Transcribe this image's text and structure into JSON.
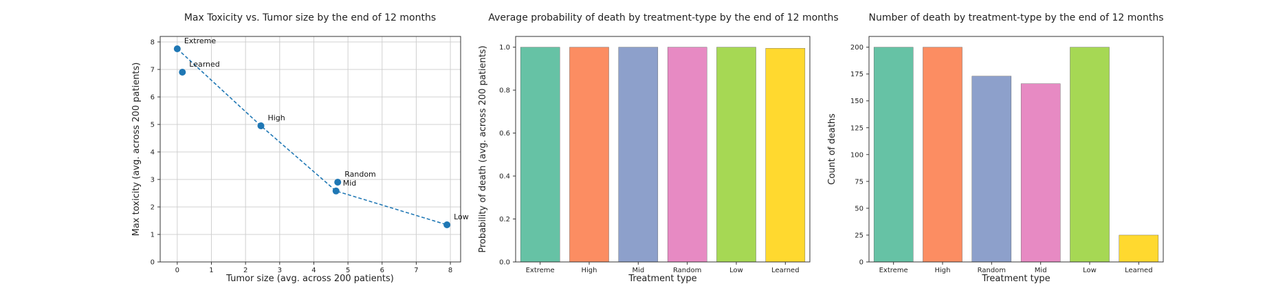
{
  "chart_data": [
    {
      "type": "scatter",
      "title": "Max Toxicity vs. Tumor size by the end of 12 months",
      "xlabel": "Tumor size (avg. across 200 patients)",
      "ylabel": "Max toxicity (avg. across 200 patients)",
      "xlim": [
        -0.5,
        8.3
      ],
      "ylim": [
        0,
        8.2
      ],
      "xticks": [
        0,
        1,
        2,
        3,
        4,
        5,
        6,
        7,
        8
      ],
      "yticks": [
        0,
        1,
        2,
        3,
        4,
        5,
        6,
        7,
        8
      ],
      "grid": true,
      "color": "#1f77b4",
      "points": [
        {
          "label": "Extreme",
          "x": 0.0,
          "y": 7.75
        },
        {
          "label": "Learned",
          "x": 0.15,
          "y": 6.9
        },
        {
          "label": "High",
          "x": 2.45,
          "y": 4.95
        },
        {
          "label": "Random",
          "x": 4.7,
          "y": 2.9
        },
        {
          "label": "Mid",
          "x": 4.65,
          "y": 2.58
        },
        {
          "label": "Low",
          "x": 7.9,
          "y": 1.35
        }
      ],
      "dashed_line_order": [
        "Extreme",
        "High",
        "Mid",
        "Low"
      ]
    },
    {
      "type": "bar",
      "title": "Average probability of death by treatment-type by the end of 12 months",
      "xlabel": "Treatment type",
      "ylabel": "Probability of death (avg. across 200 patients)",
      "categories": [
        "Extreme",
        "High",
        "Mid",
        "Random",
        "Low",
        "Learned"
      ],
      "values": [
        1.0,
        1.0,
        1.0,
        1.0,
        1.0,
        0.995
      ],
      "ylim": [
        0,
        1.05
      ],
      "yticks": [
        "0.0",
        "0.2",
        "0.4",
        "0.6",
        "0.8",
        "1.0"
      ],
      "grid": false,
      "colors": [
        "#66c2a5",
        "#fc8d62",
        "#8da0cb",
        "#e78ac3",
        "#a6d854",
        "#ffd92f"
      ]
    },
    {
      "type": "bar",
      "title": "Number of death by treatment-type by the end of 12 months",
      "xlabel": "Treatment type",
      "ylabel": "Count of deaths",
      "categories": [
        "Extreme",
        "High",
        "Random",
        "Mid",
        "Low",
        "Learned"
      ],
      "values": [
        200,
        200,
        173,
        166,
        200,
        25
      ],
      "ylim": [
        0,
        210
      ],
      "yticks": [
        0,
        25,
        50,
        75,
        100,
        125,
        150,
        175,
        200
      ],
      "grid": false,
      "colors": [
        "#66c2a5",
        "#fc8d62",
        "#8da0cb",
        "#e78ac3",
        "#a6d854",
        "#ffd92f"
      ]
    }
  ]
}
